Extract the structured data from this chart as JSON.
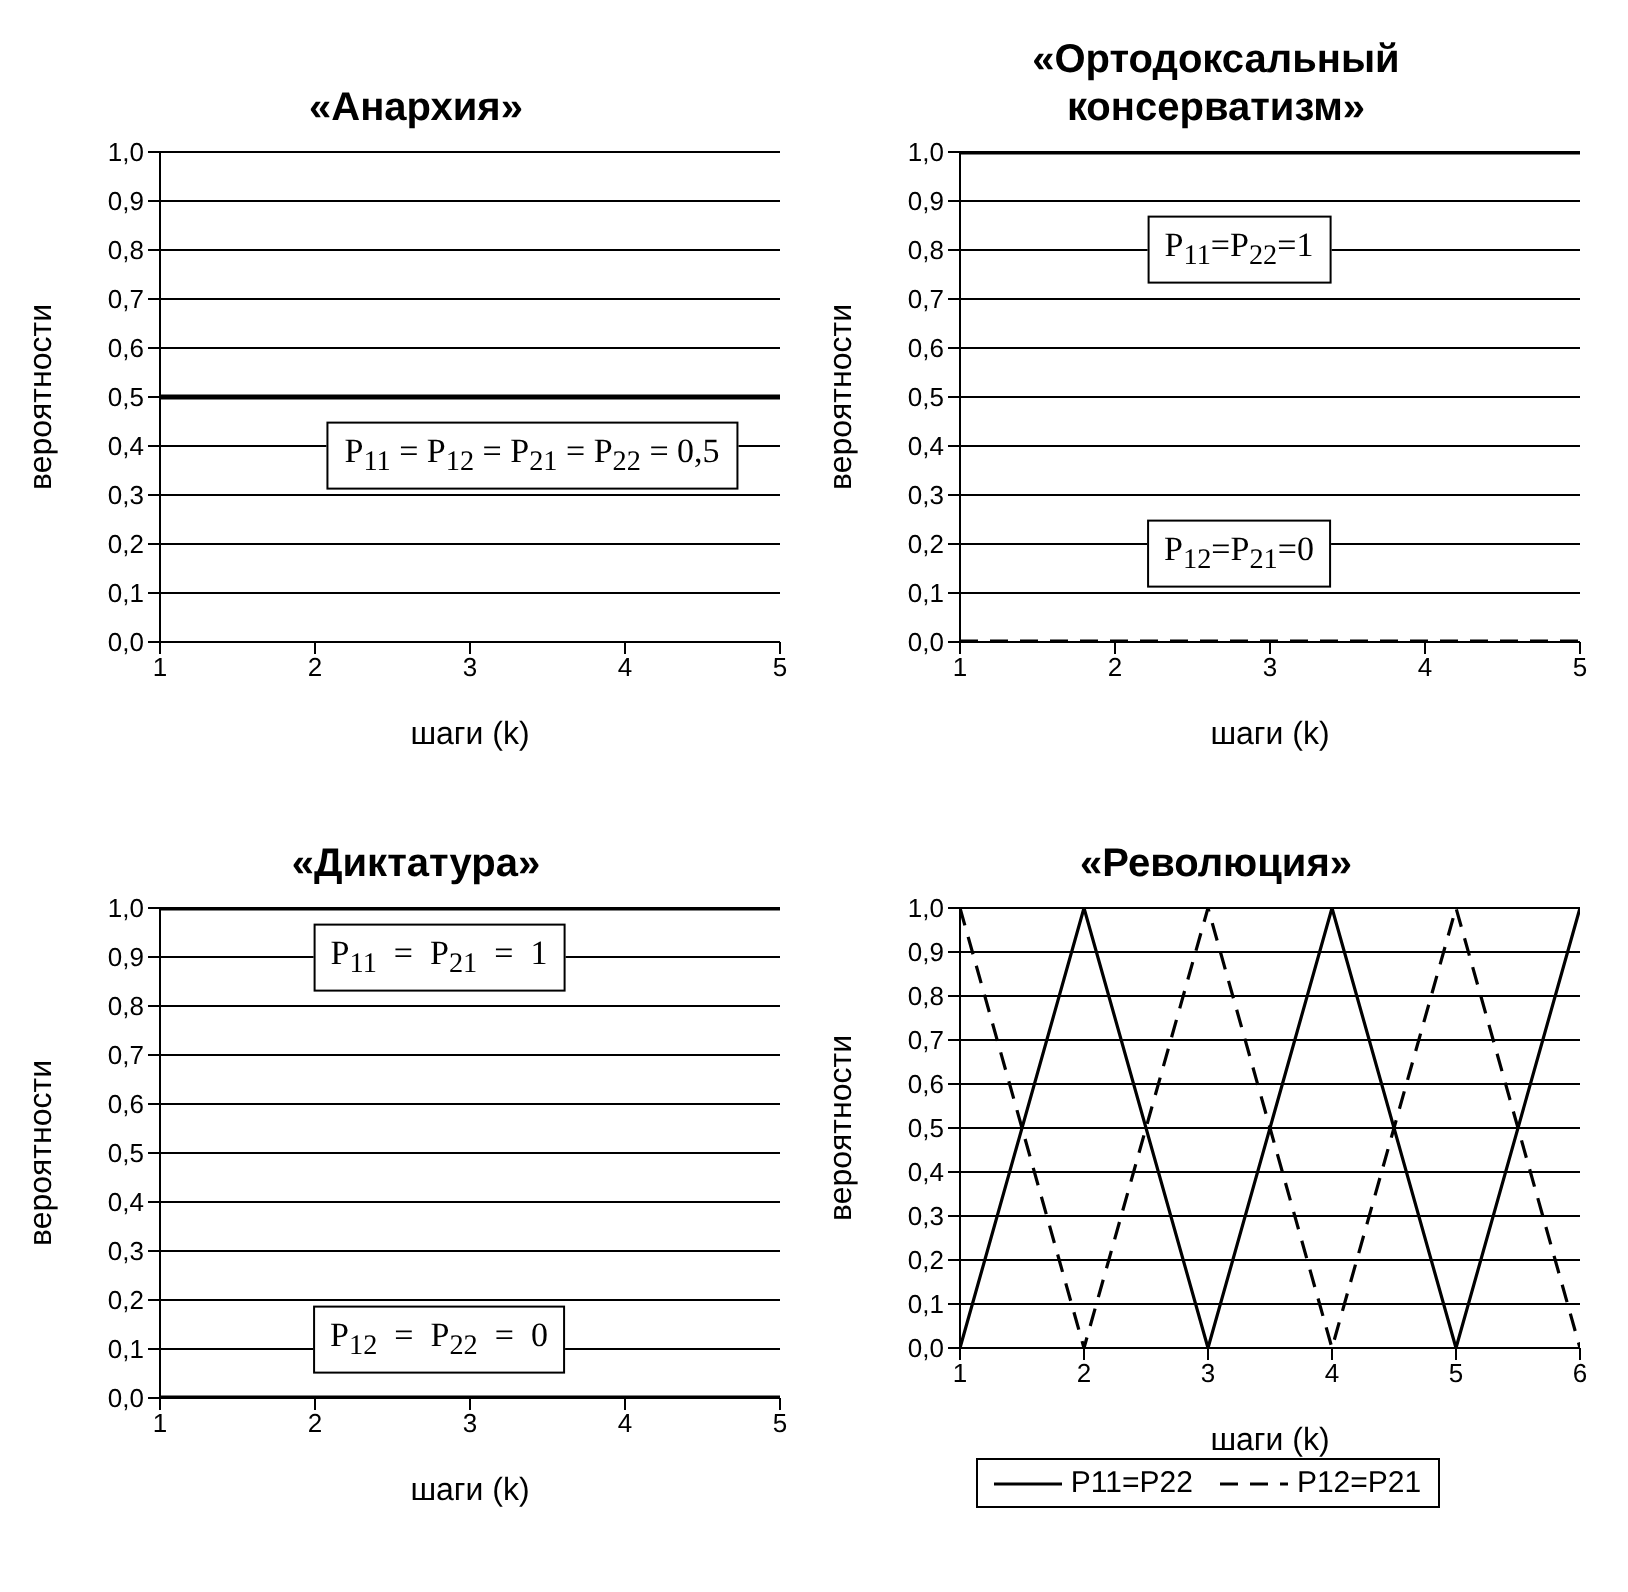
{
  "chart_data": [
    {
      "type": "line",
      "title": "«Анархия»",
      "xlabel": "шаги (k)",
      "ylabel": "вероятности",
      "x": [
        1,
        2,
        3,
        4,
        5
      ],
      "xlim": [
        1,
        5
      ],
      "xticks": [
        1,
        2,
        3,
        4,
        5
      ],
      "ylim": [
        0,
        1
      ],
      "yticks": [
        {
          "value": 0,
          "label": "0,0"
        },
        {
          "value": 0.1,
          "label": "0,1"
        },
        {
          "value": 0.2,
          "label": "0,2"
        },
        {
          "value": 0.3,
          "label": "0,3"
        },
        {
          "value": 0.4,
          "label": "0,4"
        },
        {
          "value": 0.5,
          "label": "0,5"
        },
        {
          "value": 0.6,
          "label": "0,6"
        },
        {
          "value": 0.7,
          "label": "0,7"
        },
        {
          "value": 0.8,
          "label": "0,8"
        },
        {
          "value": 0.9,
          "label": "0,9"
        },
        {
          "value": 1,
          "label": "1,0"
        }
      ],
      "grid": "y",
      "legend": false,
      "series": [
        {
          "color": "#000000",
          "line_style": "solid",
          "values": [
            0.5,
            0.5,
            0.5,
            0.5,
            0.5
          ]
        }
      ],
      "annotations": [
        "P$_{11}$ = P$_{12}$ = P$_{21}$ = P$_{22}$ = 0,5"
      ]
    },
    {
      "type": "line",
      "title": "«Ортодоксальный консерватизм»",
      "xlabel": "шаги (k)",
      "ylabel": "вероятности",
      "x": [
        1,
        2,
        3,
        4,
        5
      ],
      "xlim": [
        1,
        5
      ],
      "xticks": [
        1,
        2,
        3,
        4,
        5
      ],
      "ylim": [
        0,
        1
      ],
      "yticks": [
        {
          "value": 0,
          "label": "0,0"
        },
        {
          "value": 0.1,
          "label": "0,1"
        },
        {
          "value": 0.2,
          "label": "0,2"
        },
        {
          "value": 0.3,
          "label": "0,3"
        },
        {
          "value": 0.4,
          "label": "0,4"
        },
        {
          "value": 0.5,
          "label": "0,5"
        },
        {
          "value": 0.6,
          "label": "0,6"
        },
        {
          "value": 0.7,
          "label": "0,7"
        },
        {
          "value": 0.8,
          "label": "0,8"
        },
        {
          "value": 0.9,
          "label": "0,9"
        },
        {
          "value": 1,
          "label": "1,0"
        }
      ],
      "grid": "y",
      "legend": false,
      "series": [
        {
          "color": "#000000",
          "line_style": "solid",
          "values": [
            1,
            1,
            1,
            1,
            1
          ]
        },
        {
          "color": "#000000",
          "line_style": "dashed",
          "values": [
            0,
            0,
            0,
            0,
            0
          ]
        }
      ],
      "annotations": [
        "P$_{11}$=P$_{22}$=1",
        "P$_{12}$=P$_{21}$=0"
      ]
    },
    {
      "type": "line",
      "title": "«Диктатура»",
      "xlabel": "шаги (k)",
      "ylabel": "вероятности",
      "x": [
        1,
        2,
        3,
        4,
        5
      ],
      "xlim": [
        1,
        5
      ],
      "xticks": [
        1,
        2,
        3,
        4,
        5
      ],
      "ylim": [
        0,
        1
      ],
      "yticks": [
        {
          "value": 0,
          "label": "0,0"
        },
        {
          "value": 0.1,
          "label": "0,1"
        },
        {
          "value": 0.2,
          "label": "0,2"
        },
        {
          "value": 0.3,
          "label": "0,3"
        },
        {
          "value": 0.4,
          "label": "0,4"
        },
        {
          "value": 0.5,
          "label": "0,5"
        },
        {
          "value": 0.6,
          "label": "0,6"
        },
        {
          "value": 0.7,
          "label": "0,7"
        },
        {
          "value": 0.8,
          "label": "0,8"
        },
        {
          "value": 0.9,
          "label": "0,9"
        },
        {
          "value": 1,
          "label": "1,0"
        }
      ],
      "grid": "y",
      "legend": false,
      "series": [
        {
          "color": "#000000",
          "line_style": "solid",
          "values": [
            1,
            1,
            1,
            1,
            1
          ]
        },
        {
          "color": "#000000",
          "line_style": "solid",
          "values": [
            0,
            0,
            0,
            0,
            0
          ]
        }
      ],
      "annotations": [
        "P$_{11}$  =  P$_{21}$  =  1",
        "P$_{12}$  =  P$_{22}$  =  0"
      ]
    },
    {
      "type": "line",
      "title": "«Революция»",
      "xlabel": "шаги (k)",
      "ylabel": "вероятности",
      "x": [
        1,
        2,
        3,
        4,
        5,
        6
      ],
      "xlim": [
        1,
        6
      ],
      "xticks": [
        1,
        2,
        3,
        4,
        5,
        6
      ],
      "ylim": [
        0,
        1
      ],
      "yticks": [
        {
          "value": 0,
          "label": "0,0"
        },
        {
          "value": 0.1,
          "label": "0,1"
        },
        {
          "value": 0.2,
          "label": "0,2"
        },
        {
          "value": 0.3,
          "label": "0,3"
        },
        {
          "value": 0.4,
          "label": "0,4"
        },
        {
          "value": 0.5,
          "label": "0,5"
        },
        {
          "value": 0.6,
          "label": "0,6"
        },
        {
          "value": 0.7,
          "label": "0,7"
        },
        {
          "value": 0.8,
          "label": "0,8"
        },
        {
          "value": 0.9,
          "label": "0,9"
        },
        {
          "value": 1,
          "label": "1,0"
        }
      ],
      "grid": "y",
      "legend": "bottom",
      "series": [
        {
          "name": "P11=P22",
          "color": "#000000",
          "line_style": "solid",
          "values": [
            0,
            1,
            0,
            1,
            0,
            1
          ]
        },
        {
          "name": "P12=P21",
          "color": "#000000",
          "line_style": "dashed",
          "values": [
            1,
            0,
            1,
            0,
            1,
            0
          ]
        }
      ]
    }
  ]
}
